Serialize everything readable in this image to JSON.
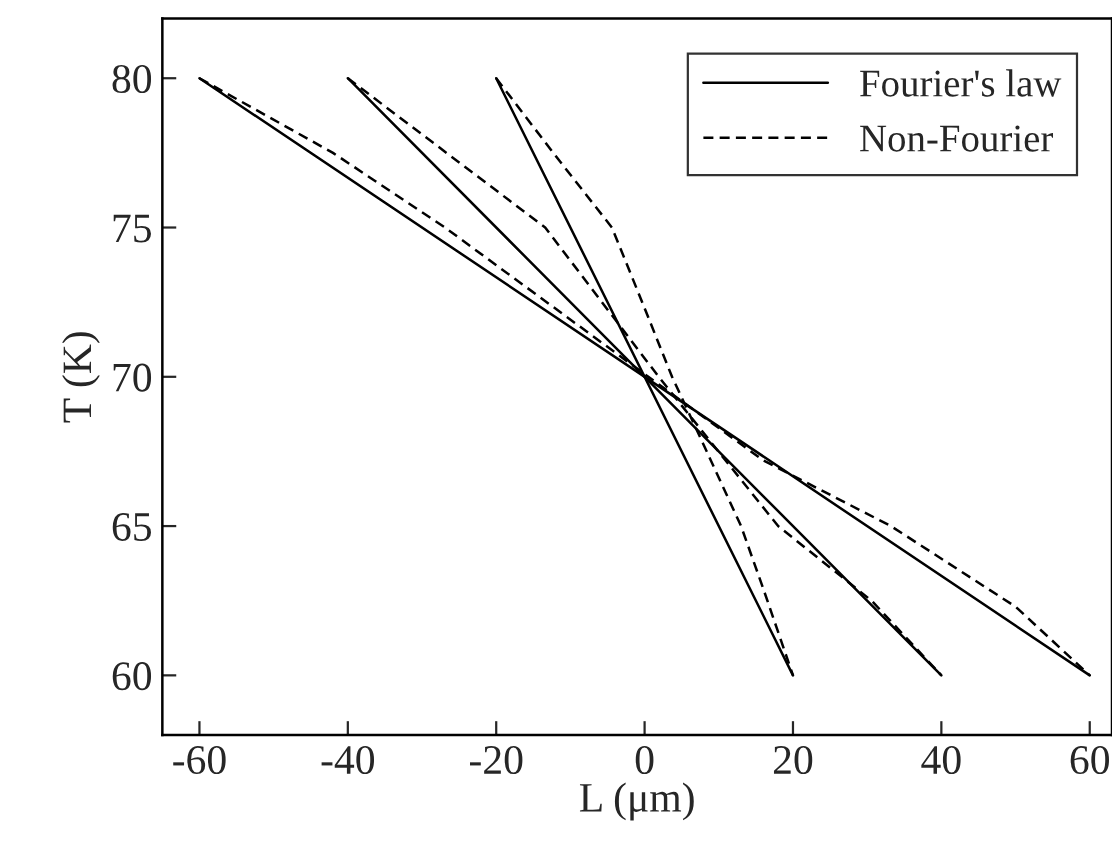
{
  "chart_data": {
    "type": "line",
    "xlabel": "L (μm)",
    "ylabel": "T (K)",
    "xlim": [
      -65,
      63
    ],
    "ylim": [
      58,
      82
    ],
    "xticks": [
      -60,
      -40,
      -20,
      0,
      20,
      40,
      60
    ],
    "yticks": [
      60,
      65,
      70,
      75,
      80
    ],
    "grid": false,
    "legend": "top right",
    "marker": "none",
    "series": [
      {
        "name": "Fourier's law",
        "color": "#000000",
        "line_style": "solid",
        "x": [
          -60,
          60
        ],
        "values": [
          80,
          60
        ]
      },
      {
        "name": "Non-Fourier",
        "color": "#000000",
        "line_style": "dashed",
        "x": [
          -60,
          -42,
          -26.9,
          0.5,
          16,
          33.2,
          50,
          60
        ],
        "values": [
          80,
          77.5,
          75,
          70,
          67.2,
          65,
          62.3,
          60
        ]
      },
      {
        "color": "#000000",
        "line_style": "solid",
        "x": [
          -40,
          40
        ],
        "values": [
          80,
          60
        ]
      },
      {
        "color": "#000000",
        "line_style": "dashed",
        "x": [
          -40,
          -13.4,
          1.9,
          18,
          30.6,
          40
        ],
        "values": [
          80,
          75,
          70,
          65,
          62.5,
          60
        ]
      },
      {
        "color": "#000000",
        "line_style": "solid",
        "x": [
          -20,
          20
        ],
        "values": [
          80,
          60
        ]
      },
      {
        "color": "#000000",
        "line_style": "dashed",
        "x": [
          -20,
          -12,
          -4.4,
          0,
          3.7,
          8,
          13,
          16,
          20
        ],
        "values": [
          80,
          77.4,
          75,
          72.3,
          70,
          67.7,
          65,
          62.9,
          60
        ]
      }
    ]
  }
}
